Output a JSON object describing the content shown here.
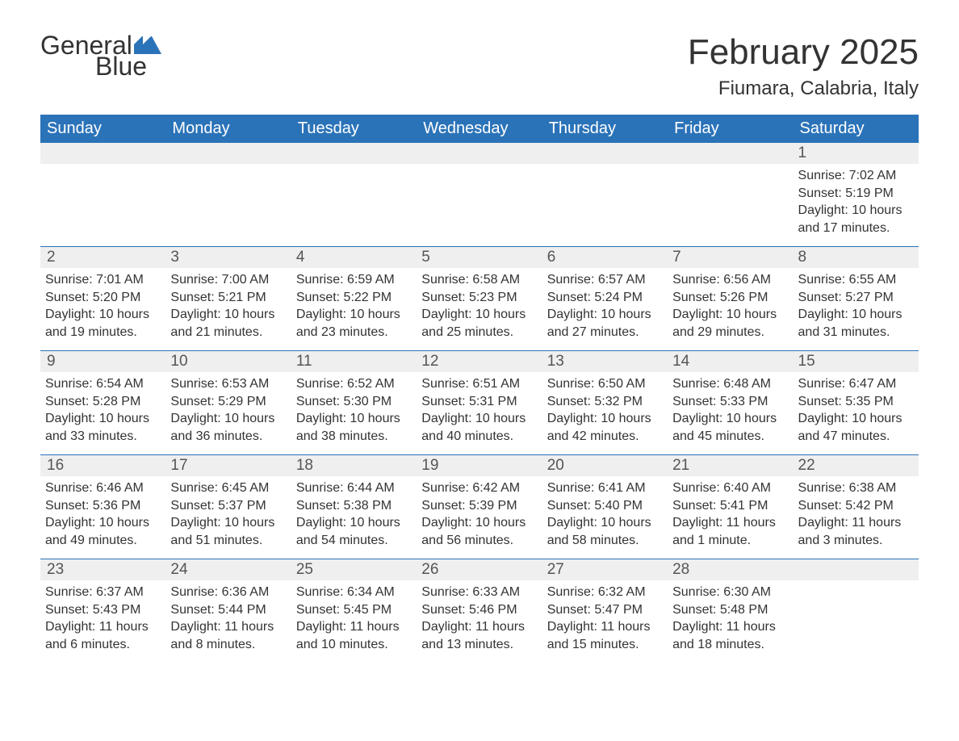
{
  "logo": {
    "text1": "General",
    "text2": "Blue"
  },
  "header": {
    "month_title": "February 2025",
    "location": "Fiumara, Calabria, Italy"
  },
  "colors": {
    "header_bg": "#2b73b8",
    "header_text": "#ffffff",
    "daynum_bg": "#efefef",
    "week_border": "#2b73b8",
    "body_text": "#333333"
  },
  "fonts": {
    "family": "Arial",
    "month_title_pt": 33,
    "location_pt": 18,
    "day_header_pt": 15,
    "daynum_pt": 14,
    "cell_pt": 12
  },
  "day_names": [
    "Sunday",
    "Monday",
    "Tuesday",
    "Wednesday",
    "Thursday",
    "Friday",
    "Saturday"
  ],
  "weeks": [
    [
      {
        "empty": true
      },
      {
        "empty": true
      },
      {
        "empty": true
      },
      {
        "empty": true
      },
      {
        "empty": true
      },
      {
        "empty": true
      },
      {
        "day": "1",
        "sunrise": "Sunrise: 7:02 AM",
        "sunset": "Sunset: 5:19 PM",
        "daylight": "Daylight: 10 hours and 17 minutes."
      }
    ],
    [
      {
        "day": "2",
        "sunrise": "Sunrise: 7:01 AM",
        "sunset": "Sunset: 5:20 PM",
        "daylight": "Daylight: 10 hours and 19 minutes."
      },
      {
        "day": "3",
        "sunrise": "Sunrise: 7:00 AM",
        "sunset": "Sunset: 5:21 PM",
        "daylight": "Daylight: 10 hours and 21 minutes."
      },
      {
        "day": "4",
        "sunrise": "Sunrise: 6:59 AM",
        "sunset": "Sunset: 5:22 PM",
        "daylight": "Daylight: 10 hours and 23 minutes."
      },
      {
        "day": "5",
        "sunrise": "Sunrise: 6:58 AM",
        "sunset": "Sunset: 5:23 PM",
        "daylight": "Daylight: 10 hours and 25 minutes."
      },
      {
        "day": "6",
        "sunrise": "Sunrise: 6:57 AM",
        "sunset": "Sunset: 5:24 PM",
        "daylight": "Daylight: 10 hours and 27 minutes."
      },
      {
        "day": "7",
        "sunrise": "Sunrise: 6:56 AM",
        "sunset": "Sunset: 5:26 PM",
        "daylight": "Daylight: 10 hours and 29 minutes."
      },
      {
        "day": "8",
        "sunrise": "Sunrise: 6:55 AM",
        "sunset": "Sunset: 5:27 PM",
        "daylight": "Daylight: 10 hours and 31 minutes."
      }
    ],
    [
      {
        "day": "9",
        "sunrise": "Sunrise: 6:54 AM",
        "sunset": "Sunset: 5:28 PM",
        "daylight": "Daylight: 10 hours and 33 minutes."
      },
      {
        "day": "10",
        "sunrise": "Sunrise: 6:53 AM",
        "sunset": "Sunset: 5:29 PM",
        "daylight": "Daylight: 10 hours and 36 minutes."
      },
      {
        "day": "11",
        "sunrise": "Sunrise: 6:52 AM",
        "sunset": "Sunset: 5:30 PM",
        "daylight": "Daylight: 10 hours and 38 minutes."
      },
      {
        "day": "12",
        "sunrise": "Sunrise: 6:51 AM",
        "sunset": "Sunset: 5:31 PM",
        "daylight": "Daylight: 10 hours and 40 minutes."
      },
      {
        "day": "13",
        "sunrise": "Sunrise: 6:50 AM",
        "sunset": "Sunset: 5:32 PM",
        "daylight": "Daylight: 10 hours and 42 minutes."
      },
      {
        "day": "14",
        "sunrise": "Sunrise: 6:48 AM",
        "sunset": "Sunset: 5:33 PM",
        "daylight": "Daylight: 10 hours and 45 minutes."
      },
      {
        "day": "15",
        "sunrise": "Sunrise: 6:47 AM",
        "sunset": "Sunset: 5:35 PM",
        "daylight": "Daylight: 10 hours and 47 minutes."
      }
    ],
    [
      {
        "day": "16",
        "sunrise": "Sunrise: 6:46 AM",
        "sunset": "Sunset: 5:36 PM",
        "daylight": "Daylight: 10 hours and 49 minutes."
      },
      {
        "day": "17",
        "sunrise": "Sunrise: 6:45 AM",
        "sunset": "Sunset: 5:37 PM",
        "daylight": "Daylight: 10 hours and 51 minutes."
      },
      {
        "day": "18",
        "sunrise": "Sunrise: 6:44 AM",
        "sunset": "Sunset: 5:38 PM",
        "daylight": "Daylight: 10 hours and 54 minutes."
      },
      {
        "day": "19",
        "sunrise": "Sunrise: 6:42 AM",
        "sunset": "Sunset: 5:39 PM",
        "daylight": "Daylight: 10 hours and 56 minutes."
      },
      {
        "day": "20",
        "sunrise": "Sunrise: 6:41 AM",
        "sunset": "Sunset: 5:40 PM",
        "daylight": "Daylight: 10 hours and 58 minutes."
      },
      {
        "day": "21",
        "sunrise": "Sunrise: 6:40 AM",
        "sunset": "Sunset: 5:41 PM",
        "daylight": "Daylight: 11 hours and 1 minute."
      },
      {
        "day": "22",
        "sunrise": "Sunrise: 6:38 AM",
        "sunset": "Sunset: 5:42 PM",
        "daylight": "Daylight: 11 hours and 3 minutes."
      }
    ],
    [
      {
        "day": "23",
        "sunrise": "Sunrise: 6:37 AM",
        "sunset": "Sunset: 5:43 PM",
        "daylight": "Daylight: 11 hours and 6 minutes."
      },
      {
        "day": "24",
        "sunrise": "Sunrise: 6:36 AM",
        "sunset": "Sunset: 5:44 PM",
        "daylight": "Daylight: 11 hours and 8 minutes."
      },
      {
        "day": "25",
        "sunrise": "Sunrise: 6:34 AM",
        "sunset": "Sunset: 5:45 PM",
        "daylight": "Daylight: 11 hours and 10 minutes."
      },
      {
        "day": "26",
        "sunrise": "Sunrise: 6:33 AM",
        "sunset": "Sunset: 5:46 PM",
        "daylight": "Daylight: 11 hours and 13 minutes."
      },
      {
        "day": "27",
        "sunrise": "Sunrise: 6:32 AM",
        "sunset": "Sunset: 5:47 PM",
        "daylight": "Daylight: 11 hours and 15 minutes."
      },
      {
        "day": "28",
        "sunrise": "Sunrise: 6:30 AM",
        "sunset": "Sunset: 5:48 PM",
        "daylight": "Daylight: 11 hours and 18 minutes."
      },
      {
        "empty": true
      }
    ]
  ]
}
